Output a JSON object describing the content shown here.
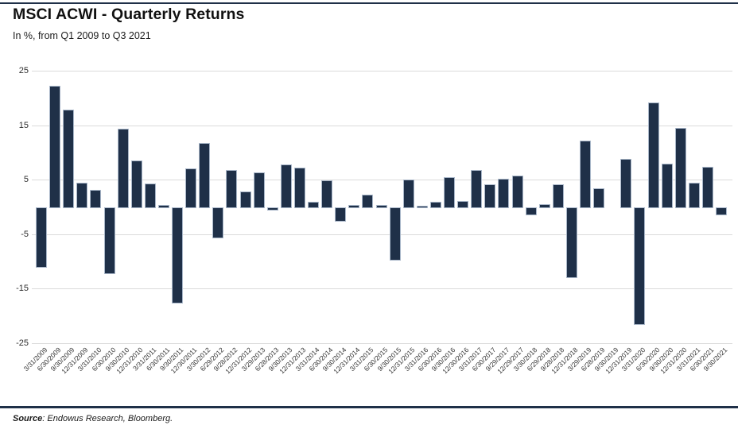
{
  "header": {
    "title": "MSCI ACWI - Quarterly Returns",
    "subtitle": "In %, from Q1 2009 to Q3 2021"
  },
  "footer": {
    "source_label": "Source",
    "source_text": ": Endowus Research, Bloomberg."
  },
  "colors": {
    "bar_fill": "#1f3048",
    "bar_border": "#a9b7c9",
    "gridline": "#dadada",
    "rule": "#1f3048",
    "axis_text": "#333333"
  },
  "chart_data": {
    "type": "bar",
    "title": "MSCI ACWI - Quarterly Returns",
    "subtitle": "In %, from Q1 2009 to Q3 2021",
    "xlabel": "",
    "ylabel": "",
    "ylim": [
      -25,
      25
    ],
    "yticks": [
      25,
      15,
      5,
      -5,
      -15,
      -25
    ],
    "grid": true,
    "legend": false,
    "categories": [
      "3/31/2009",
      "6/30/2009",
      "9/30/2009",
      "12/31/2009",
      "3/31/2010",
      "6/30/2010",
      "9/30/2010",
      "12/31/2010",
      "3/31/2011",
      "6/30/2011",
      "9/30/2011",
      "12/30/2011",
      "3/30/2012",
      "6/29/2012",
      "9/28/2012",
      "12/31/2012",
      "3/29/2013",
      "6/28/2013",
      "9/30/2013",
      "12/31/2013",
      "3/31/2014",
      "6/30/2014",
      "9/30/2014",
      "12/31/2014",
      "3/31/2015",
      "6/30/2015",
      "9/30/2015",
      "12/31/2015",
      "3/31/2016",
      "6/30/2016",
      "9/30/2016",
      "12/30/2016",
      "3/31/2017",
      "6/30/2017",
      "9/29/2017",
      "12/29/2017",
      "3/30/2018",
      "6/29/2018",
      "9/28/2018",
      "12/31/2018",
      "3/29/2019",
      "6/28/2019",
      "9/30/2019",
      "12/31/2019",
      "3/31/2020",
      "6/30/2020",
      "9/30/2020",
      "12/31/2020",
      "3/31/2021",
      "6/30/2021",
      "9/30/2021"
    ],
    "values": [
      -10.8,
      22.2,
      17.9,
      4.5,
      3.1,
      -12.0,
      14.4,
      8.6,
      4.3,
      0.3,
      -17.4,
      7.1,
      11.7,
      -5.4,
      6.8,
      2.8,
      6.4,
      -0.4,
      7.8,
      7.2,
      1.0,
      4.9,
      -2.4,
      0.4,
      2.2,
      0.3,
      -9.6,
      5.0,
      0.2,
      0.9,
      5.4,
      1.1,
      6.8,
      4.2,
      5.2,
      5.7,
      -1.2,
      0.5,
      4.2,
      -12.8,
      12.1,
      3.4,
      0.0,
      8.8,
      -21.4,
      19.2,
      8.0,
      14.5,
      4.4,
      7.3,
      -1.3
    ]
  }
}
